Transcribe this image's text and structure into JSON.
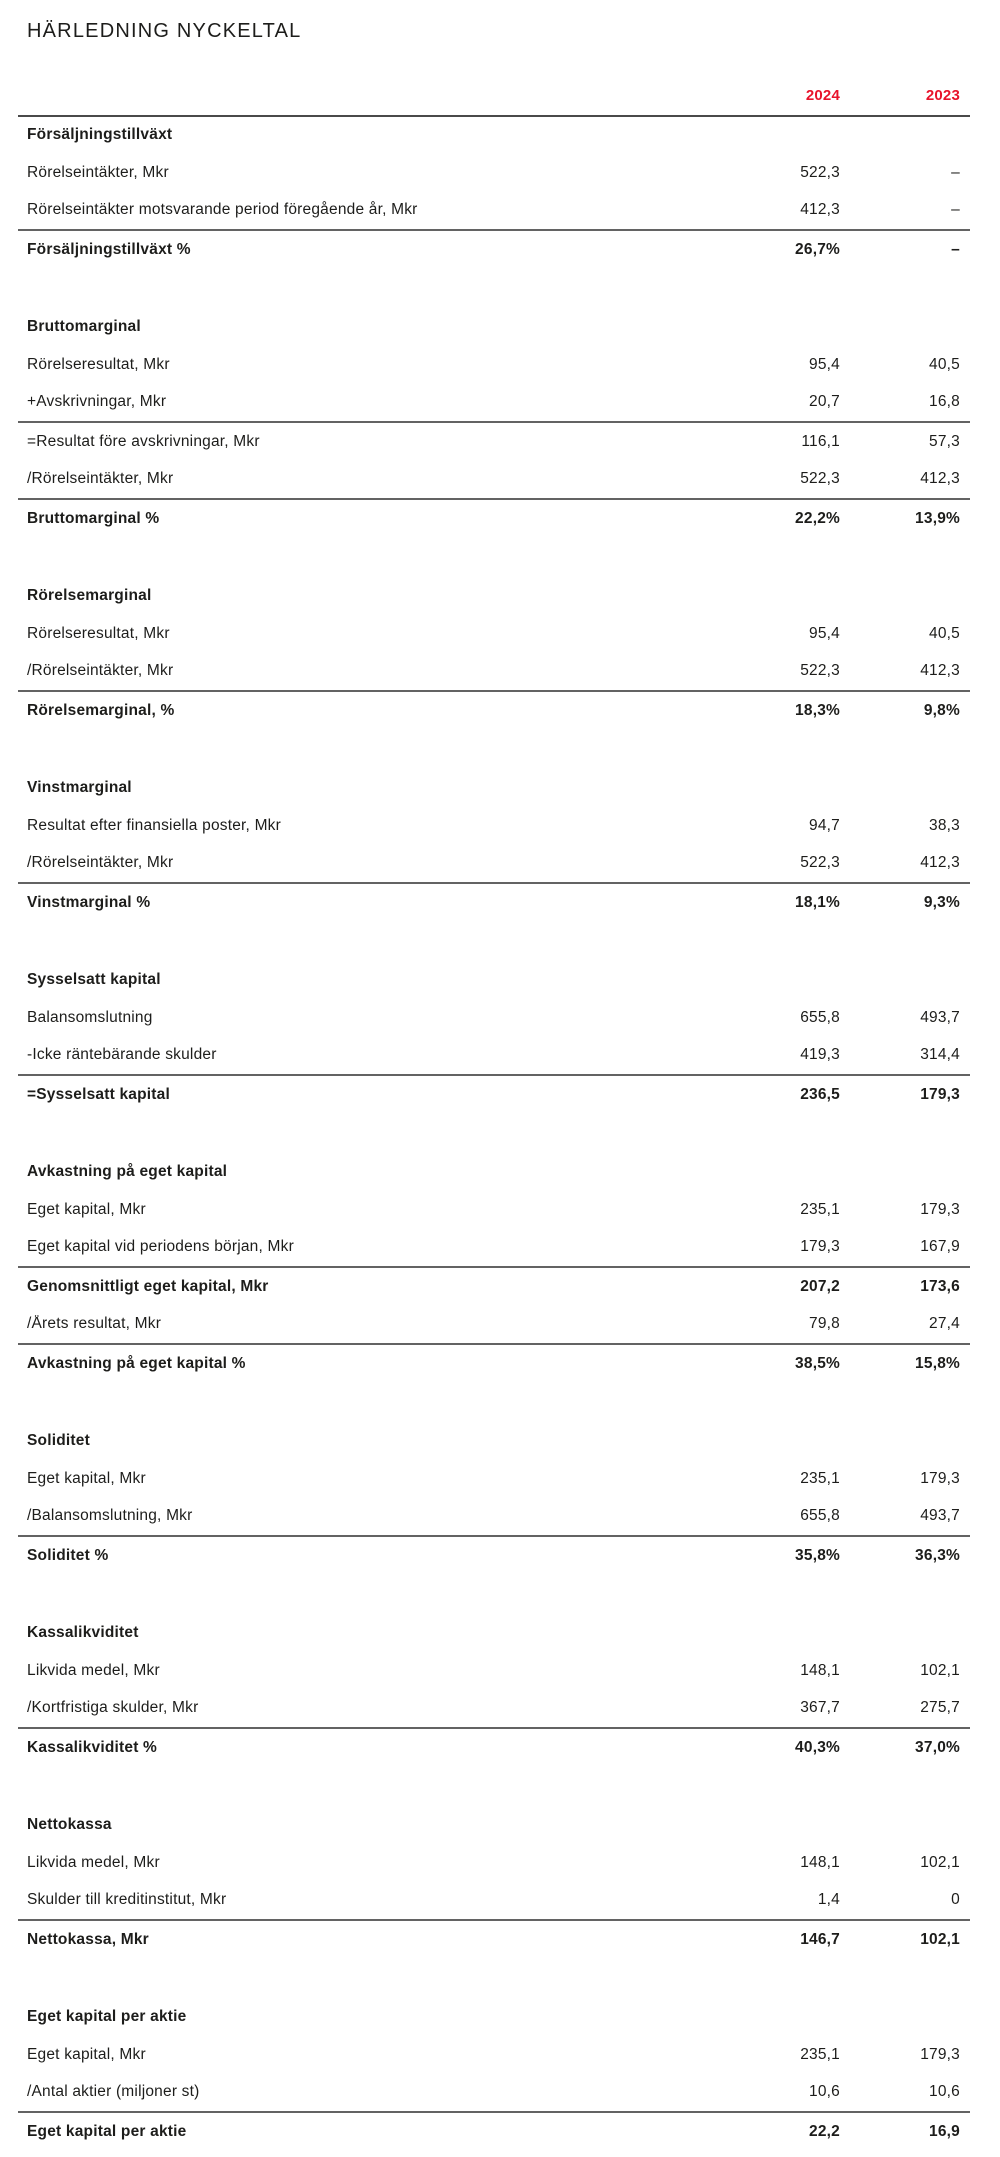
{
  "page": {
    "title": "HÄRLEDNING NYCKELTAL"
  },
  "columns": {
    "year1": "2024",
    "year2": "2023"
  },
  "colors": {
    "accent_red": "#e8132b",
    "text": "#1d1d1b",
    "rule_dark": "#4a4a4a",
    "rule_gray": "#636363"
  },
  "sections": [
    {
      "heading": "Försäljningstillväxt",
      "rows": [
        {
          "label": "Rörelseintäkter, Mkr",
          "v2024": "522,3",
          "v2023": "–",
          "bold": false,
          "rule": false
        },
        {
          "label": "Rörelseintäkter motsvarande period föregående år, Mkr",
          "v2024": "412,3",
          "v2023": "–",
          "bold": false,
          "rule": false
        },
        {
          "label": "Försäljningstillväxt %",
          "v2024": "26,7%",
          "v2023": "–",
          "bold": true,
          "rule": true
        }
      ]
    },
    {
      "heading": "Bruttomarginal",
      "rows": [
        {
          "label": "Rörelseresultat, Mkr",
          "v2024": "95,4",
          "v2023": "40,5",
          "bold": false,
          "rule": false
        },
        {
          "label": "+Avskrivningar, Mkr",
          "v2024": "20,7",
          "v2023": "16,8",
          "bold": false,
          "rule": false
        },
        {
          "label": "=Resultat före avskrivningar, Mkr",
          "v2024": "116,1",
          "v2023": "57,3",
          "bold": false,
          "rule": true
        },
        {
          "label": "/Rörelseintäkter, Mkr",
          "v2024": "522,3",
          "v2023": "412,3",
          "bold": false,
          "rule": false
        },
        {
          "label": "Bruttomarginal %",
          "v2024": "22,2%",
          "v2023": "13,9%",
          "bold": true,
          "rule": true
        }
      ]
    },
    {
      "heading": "Rörelsemarginal",
      "rows": [
        {
          "label": "Rörelseresultat, Mkr",
          "v2024": "95,4",
          "v2023": "40,5",
          "bold": false,
          "rule": false
        },
        {
          "label": "/Rörelseintäkter, Mkr",
          "v2024": "522,3",
          "v2023": "412,3",
          "bold": false,
          "rule": false
        },
        {
          "label": "Rörelsemarginal, %",
          "v2024": "18,3%",
          "v2023": "9,8%",
          "bold": true,
          "rule": true
        }
      ]
    },
    {
      "heading": "Vinstmarginal",
      "rows": [
        {
          "label": "Resultat efter finansiella poster, Mkr",
          "v2024": "94,7",
          "v2023": "38,3",
          "bold": false,
          "rule": false
        },
        {
          "label": "/Rörelseintäkter, Mkr",
          "v2024": "522,3",
          "v2023": "412,3",
          "bold": false,
          "rule": false
        },
        {
          "label": "Vinstmarginal %",
          "v2024": "18,1%",
          "v2023": "9,3%",
          "bold": true,
          "rule": true
        }
      ]
    },
    {
      "heading": "Sysselsatt kapital",
      "rows": [
        {
          "label": "Balansomslutning",
          "v2024": "655,8",
          "v2023": "493,7",
          "bold": false,
          "rule": false
        },
        {
          "label": "-Icke räntebärande skulder",
          "v2024": "419,3",
          "v2023": "314,4",
          "bold": false,
          "rule": false
        },
        {
          "label": "=Sysselsatt kapital",
          "v2024": "236,5",
          "v2023": "179,3",
          "bold": true,
          "rule": true
        }
      ]
    },
    {
      "heading": "Avkastning på eget kapital",
      "rows": [
        {
          "label": "Eget kapital, Mkr",
          "v2024": "235,1",
          "v2023": "179,3",
          "bold": false,
          "rule": false
        },
        {
          "label": "Eget kapital vid periodens början, Mkr",
          "v2024": "179,3",
          "v2023": "167,9",
          "bold": false,
          "rule": false
        },
        {
          "label": "Genomsnittligt eget kapital, Mkr",
          "v2024": "207,2",
          "v2023": "173,6",
          "bold": true,
          "rule": true
        },
        {
          "label": "/Årets resultat, Mkr",
          "v2024": "79,8",
          "v2023": "27,4",
          "bold": false,
          "rule": false
        },
        {
          "label": "Avkastning på eget kapital %",
          "v2024": "38,5%",
          "v2023": "15,8%",
          "bold": true,
          "rule": true
        }
      ]
    },
    {
      "heading": "Soliditet",
      "rows": [
        {
          "label": "Eget kapital, Mkr",
          "v2024": "235,1",
          "v2023": "179,3",
          "bold": false,
          "rule": false
        },
        {
          "label": "/Balansomslutning, Mkr",
          "v2024": "655,8",
          "v2023": "493,7",
          "bold": false,
          "rule": false
        },
        {
          "label": "Soliditet %",
          "v2024": "35,8%",
          "v2023": "36,3%",
          "bold": true,
          "rule": true
        }
      ]
    },
    {
      "heading": "Kassalikviditet",
      "rows": [
        {
          "label": "Likvida medel, Mkr",
          "v2024": "148,1",
          "v2023": "102,1",
          "bold": false,
          "rule": false
        },
        {
          "label": "/Kortfristiga skulder, Mkr",
          "v2024": "367,7",
          "v2023": "275,7",
          "bold": false,
          "rule": false
        },
        {
          "label": "Kassalikviditet %",
          "v2024": "40,3%",
          "v2023": "37,0%",
          "bold": true,
          "rule": true
        }
      ]
    },
    {
      "heading": "Nettokassa",
      "rows": [
        {
          "label": "Likvida medel, Mkr",
          "v2024": "148,1",
          "v2023": "102,1",
          "bold": false,
          "rule": false
        },
        {
          "label": "Skulder till kreditinstitut, Mkr",
          "v2024": "1,4",
          "v2023": "0",
          "bold": false,
          "rule": false
        },
        {
          "label": "Nettokassa, Mkr",
          "v2024": "146,7",
          "v2023": "102,1",
          "bold": true,
          "rule": true
        }
      ]
    },
    {
      "heading": "Eget kapital per aktie",
      "rows": [
        {
          "label": "Eget kapital, Mkr",
          "v2024": "235,1",
          "v2023": "179,3",
          "bold": false,
          "rule": false
        },
        {
          "label": "/Antal aktier (miljoner st)",
          "v2024": "10,6",
          "v2023": "10,6",
          "bold": false,
          "rule": false
        },
        {
          "label": "Eget kapital per aktie",
          "v2024": "22,2",
          "v2023": "16,9",
          "bold": true,
          "rule": true
        }
      ]
    }
  ]
}
